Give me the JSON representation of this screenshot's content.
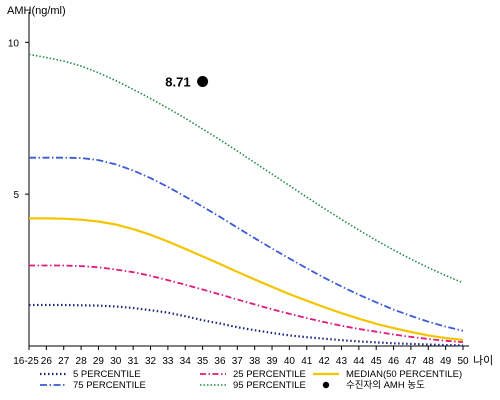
{
  "chart_data": {
    "type": "line",
    "ylabel": "AMH(ng/ml)",
    "xlabel": "나이",
    "ylim": [
      0,
      10.8
    ],
    "yticks": [
      5,
      10
    ],
    "xticks": [
      "16-25",
      "26",
      "27",
      "28",
      "29",
      "30",
      "31",
      "32",
      "33",
      "34",
      "35",
      "36",
      "37",
      "38",
      "39",
      "40",
      "41",
      "42",
      "43",
      "44",
      "45",
      "46",
      "47",
      "48",
      "49",
      "50"
    ],
    "x": [
      25,
      26,
      27,
      28,
      29,
      30,
      31,
      32,
      33,
      34,
      35,
      36,
      37,
      38,
      39,
      40,
      41,
      42,
      43,
      44,
      45,
      46,
      47,
      48,
      49,
      50
    ],
    "series": [
      {
        "name": "5 PERCENTILE",
        "color": "#1a237e",
        "dash": "1.5,2.5",
        "width": 2.2,
        "values": [
          1.35,
          1.35,
          1.35,
          1.34,
          1.33,
          1.3,
          1.25,
          1.18,
          1.1,
          0.98,
          0.85,
          0.74,
          0.62,
          0.52,
          0.43,
          0.35,
          0.29,
          0.24,
          0.19,
          0.15,
          0.12,
          0.09,
          0.07,
          0.05,
          0.03,
          0.02
        ]
      },
      {
        "name": "25 PERCENTILE",
        "color": "#e0197d",
        "dash": "6,2.5,1.5,2.5",
        "width": 1.8,
        "values": [
          2.65,
          2.65,
          2.65,
          2.63,
          2.59,
          2.52,
          2.43,
          2.31,
          2.17,
          2.02,
          1.86,
          1.7,
          1.53,
          1.37,
          1.21,
          1.06,
          0.92,
          0.79,
          0.67,
          0.56,
          0.47,
          0.38,
          0.3,
          0.23,
          0.17,
          0.13
        ]
      },
      {
        "name": "MEDIAN(50 PERCENTILE)",
        "color": "#f2c500",
        "dash": "",
        "width": 2.2,
        "values": [
          4.2,
          4.2,
          4.19,
          4.16,
          4.1,
          4.0,
          3.85,
          3.66,
          3.44,
          3.2,
          2.95,
          2.7,
          2.44,
          2.19,
          1.95,
          1.71,
          1.49,
          1.28,
          1.08,
          0.9,
          0.73,
          0.59,
          0.46,
          0.35,
          0.26,
          0.2
        ]
      },
      {
        "name": "75 PERCENTILE",
        "color": "#3a5bd4",
        "dash": "7,2.5,1.5,2.5",
        "width": 1.8,
        "values": [
          6.2,
          6.2,
          6.2,
          6.19,
          6.12,
          5.98,
          5.78,
          5.53,
          5.24,
          4.92,
          4.59,
          4.25,
          3.9,
          3.55,
          3.21,
          2.88,
          2.56,
          2.25,
          1.96,
          1.69,
          1.44,
          1.2,
          0.99,
          0.8,
          0.64,
          0.5
        ]
      },
      {
        "name": "95 PERCENTILE",
        "color": "#1e8a4a",
        "dash": "1.5,2",
        "width": 1.6,
        "values": [
          9.6,
          9.5,
          9.38,
          9.22,
          9.0,
          8.74,
          8.45,
          8.15,
          7.83,
          7.5,
          7.15,
          6.79,
          6.42,
          6.04,
          5.66,
          5.28,
          4.9,
          4.53,
          4.17,
          3.82,
          3.48,
          3.16,
          2.86,
          2.58,
          2.32,
          2.08
        ]
      }
    ],
    "point": {
      "label": "수진자의 AMH 농도",
      "x": 35,
      "y": 8.71,
      "value_label": "8.71",
      "color": "#000000"
    },
    "legend_order": [
      "5 PERCENTILE",
      "25 PERCENTILE",
      "MEDIAN(50 PERCENTILE)",
      "75 PERCENTILE",
      "95 PERCENTILE",
      "수진자의 AMH 농도"
    ],
    "legend_position": "bottom",
    "grid": false
  }
}
